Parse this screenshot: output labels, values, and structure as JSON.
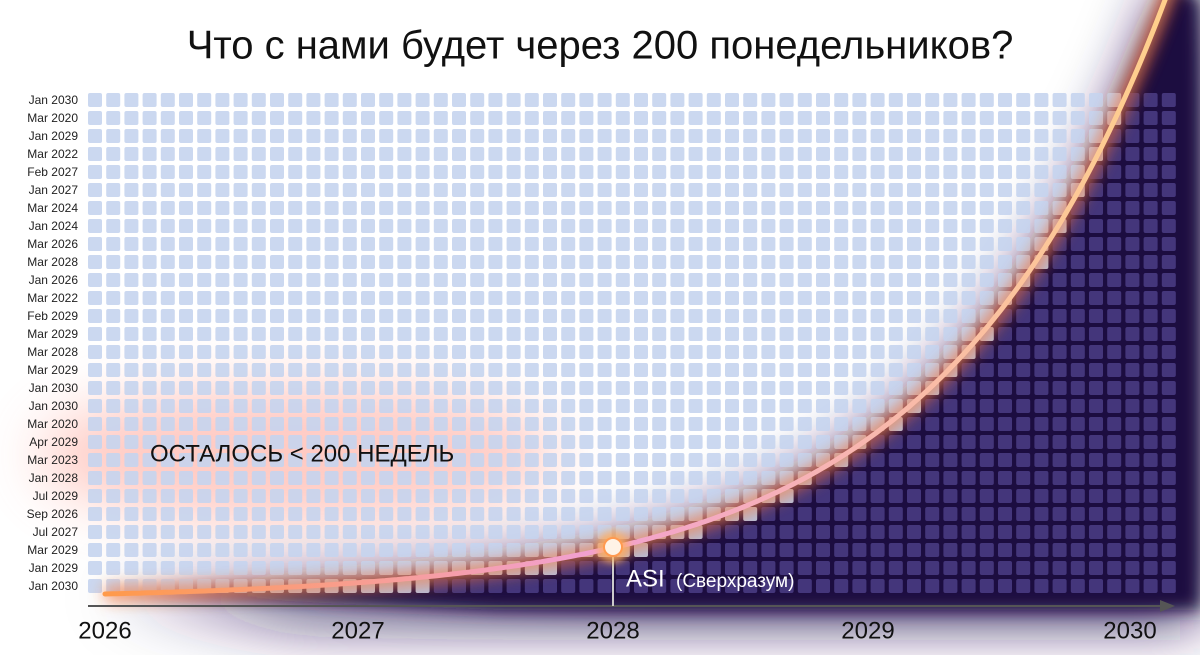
{
  "header": {
    "title": "Что с нами будет через 200 понедельников?"
  },
  "rows": [
    "Jan 2030",
    "Mar 2020",
    "Jan 2029",
    "Mar 2022",
    "Feb 2027",
    "Jan 2027",
    "Mar 2024",
    "Jan 2024",
    "Mar 2026",
    "Mar 2028",
    "Jan 2026",
    "Mar 2022",
    "Feb 2029",
    "Mar 2029",
    "Mar 2028",
    "Mar 2029",
    "Jan 2030",
    "Jan 2030",
    "Mar 2020",
    "Apr 2029",
    "Mar 2023",
    "Jan 2028",
    "Jul 2029",
    "Sep 2026",
    "Jul 2027",
    "Mar 2029",
    "Jan 2029",
    "Jan 2030"
  ],
  "axis": {
    "labels": [
      "2026",
      "2027",
      "2028",
      "2029",
      "2030"
    ]
  },
  "annotations": {
    "weeks_left": "ОСТАЛОСЬ < 200 НЕДЕЛЬ",
    "asi": "ASI",
    "asi_note": "(Сверхразум)"
  }
}
